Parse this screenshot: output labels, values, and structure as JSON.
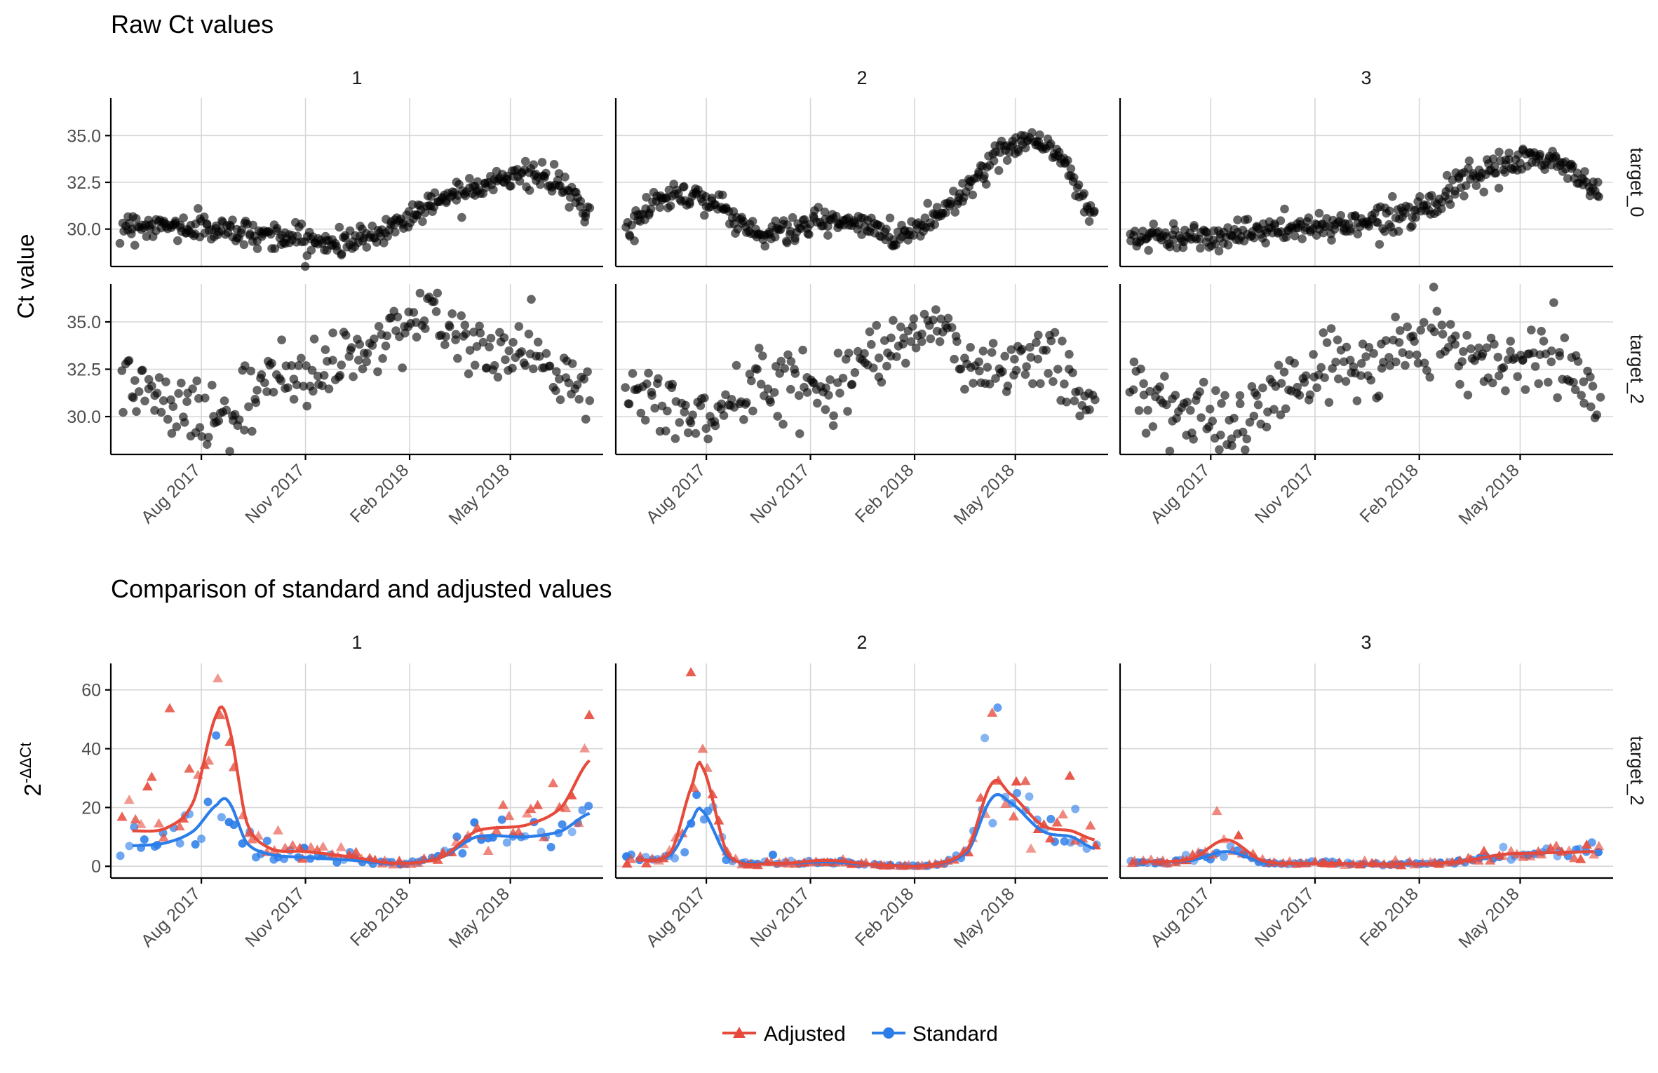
{
  "chart_data": [
    {
      "type": "scatter",
      "title": "Raw Ct values",
      "ylabel": "Ct value",
      "facet_cols": [
        "1",
        "2",
        "3"
      ],
      "facet_rows": [
        "target_0",
        "target_2"
      ],
      "x_ticks": [
        "Aug 2017",
        "Nov 2017",
        "Feb 2018",
        "May 2018"
      ],
      "x_tick_dates": [
        "2017-08-01",
        "2017-11-01",
        "2018-02-01",
        "2018-05-01"
      ],
      "xlim": [
        "2017-05-13",
        "2018-07-22"
      ],
      "ylim": [
        28,
        37
      ],
      "y_ticks": [
        "30.0",
        "32.5",
        "35.0"
      ],
      "y_tick_values": [
        30,
        32.5,
        35
      ],
      "point_color": "#000000",
      "series": [
        {
          "facet": "1",
          "target": "target_0",
          "x": [
            "2017-05-20",
            "2017-06-15",
            "2017-07-15",
            "2017-08-15",
            "2017-09-15",
            "2017-10-15",
            "2017-11-15",
            "2017-12-15",
            "2018-01-15",
            "2018-02-15",
            "2018-03-15",
            "2018-04-15",
            "2018-05-15",
            "2018-06-15",
            "2018-07-05"
          ],
          "y": [
            30.2,
            30.2,
            30.1,
            30.0,
            29.8,
            29.6,
            29.3,
            29.4,
            30.1,
            31.2,
            32.0,
            32.6,
            32.9,
            32.3,
            31.0
          ]
        },
        {
          "facet": "1",
          "target": "target_2",
          "x": [
            "2017-05-20",
            "2017-06-15",
            "2017-07-15",
            "2017-08-15",
            "2017-09-15",
            "2017-10-15",
            "2017-11-15",
            "2017-12-15",
            "2018-01-15",
            "2018-02-15",
            "2018-03-15",
            "2018-04-15",
            "2018-05-15",
            "2018-06-15",
            "2018-07-05"
          ],
          "y": [
            32.2,
            31.3,
            30.3,
            30.0,
            30.7,
            32.2,
            32.6,
            33.1,
            34.5,
            35.4,
            34.0,
            33.5,
            33.2,
            32.3,
            31.0
          ]
        },
        {
          "facet": "2",
          "target": "target_0",
          "x": [
            "2017-05-20",
            "2017-06-15",
            "2017-07-15",
            "2017-08-15",
            "2017-09-15",
            "2017-10-15",
            "2017-11-15",
            "2017-12-15",
            "2018-01-15",
            "2018-02-15",
            "2018-03-15",
            "2018-04-15",
            "2018-05-15",
            "2018-06-15",
            "2018-07-05"
          ],
          "y": [
            29.8,
            31.4,
            31.9,
            31.1,
            29.8,
            30.0,
            30.4,
            30.2,
            29.7,
            30.5,
            32.0,
            33.8,
            34.9,
            33.4,
            31.0
          ]
        },
        {
          "facet": "2",
          "target": "target_2",
          "x": [
            "2017-05-20",
            "2017-06-15",
            "2017-07-15",
            "2017-08-15",
            "2017-09-15",
            "2017-10-15",
            "2017-11-15",
            "2017-12-15",
            "2018-01-15",
            "2018-02-15",
            "2018-03-15",
            "2018-04-15",
            "2018-05-15",
            "2018-06-15",
            "2018-07-05"
          ],
          "y": [
            31.4,
            31.0,
            30.0,
            30.3,
            31.5,
            32.0,
            31.5,
            32.8,
            34.4,
            34.6,
            33.0,
            32.6,
            33.2,
            32.4,
            31.0
          ]
        },
        {
          "facet": "3",
          "target": "target_0",
          "x": [
            "2017-05-20",
            "2017-06-15",
            "2017-07-15",
            "2017-08-15",
            "2017-09-15",
            "2017-10-15",
            "2017-11-15",
            "2017-12-15",
            "2018-01-15",
            "2018-02-15",
            "2018-03-15",
            "2018-04-15",
            "2018-05-15",
            "2018-06-15",
            "2018-07-05"
          ],
          "y": [
            29.6,
            29.6,
            29.6,
            29.7,
            29.9,
            30.0,
            30.2,
            30.4,
            30.8,
            31.5,
            32.5,
            33.3,
            33.8,
            33.2,
            32.0
          ]
        },
        {
          "facet": "3",
          "target": "target_2",
          "x": [
            "2017-05-20",
            "2017-06-15",
            "2017-07-15",
            "2017-08-15",
            "2017-09-15",
            "2017-10-15",
            "2017-11-15",
            "2017-12-15",
            "2018-01-15",
            "2018-02-15",
            "2018-03-15",
            "2018-04-15",
            "2018-05-15",
            "2018-06-15",
            "2018-07-05"
          ],
          "y": [
            31.3,
            30.8,
            30.2,
            29.8,
            30.4,
            32.0,
            32.6,
            32.7,
            33.6,
            34.6,
            33.2,
            32.8,
            33.4,
            32.6,
            31.0
          ]
        }
      ]
    },
    {
      "type": "scatter",
      "title": "Comparison of standard and adjusted values",
      "ylabel": "2",
      "ylabel_superscript": "-ΔΔCt",
      "facet_cols": [
        "1",
        "2",
        "3"
      ],
      "facet_rows": [
        "target_2"
      ],
      "x_ticks": [
        "Aug 2017",
        "Nov 2017",
        "Feb 2018",
        "May 2018"
      ],
      "x_tick_dates": [
        "2017-08-01",
        "2017-11-01",
        "2018-02-01",
        "2018-05-01"
      ],
      "xlim": [
        "2017-05-13",
        "2018-07-22"
      ],
      "ylim": [
        -4,
        69
      ],
      "y_ticks": [
        "0",
        "20",
        "40",
        "60"
      ],
      "y_tick_values": [
        0,
        20,
        40,
        60
      ],
      "legend": {
        "position": "bottom",
        "entries": [
          "Adjusted",
          "Standard"
        ]
      },
      "colors": {
        "Adjusted": "#e64a3b",
        "Standard": "#2b7de9"
      },
      "series": [
        {
          "facet": "1",
          "name": "Adjusted",
          "x": [
            "2017-06-01",
            "2017-07-01",
            "2017-07-25",
            "2017-08-15",
            "2017-08-25",
            "2017-09-10",
            "2017-10-01",
            "2017-11-01",
            "2017-12-15",
            "2018-01-20",
            "2018-03-01",
            "2018-04-01",
            "2018-05-15",
            "2018-06-15",
            "2018-07-10"
          ],
          "y": [
            12,
            13,
            22,
            52,
            48,
            15,
            6,
            5,
            3,
            1,
            3,
            12,
            14,
            20,
            36
          ]
        },
        {
          "facet": "1",
          "name": "Standard",
          "x": [
            "2017-06-01",
            "2017-07-01",
            "2017-07-25",
            "2017-08-15",
            "2017-08-25",
            "2017-09-10",
            "2017-10-01",
            "2017-11-01",
            "2017-12-15",
            "2018-01-20",
            "2018-03-01",
            "2018-04-01",
            "2018-05-15",
            "2018-06-15",
            "2018-07-10"
          ],
          "y": [
            7,
            8,
            12,
            21,
            22,
            8,
            4,
            3,
            2,
            1,
            3,
            10,
            10,
            12,
            18
          ]
        },
        {
          "facet": "2",
          "name": "Adjusted",
          "x": [
            "2017-06-01",
            "2017-07-01",
            "2017-07-20",
            "2017-07-28",
            "2017-08-20",
            "2017-10-01",
            "2017-11-15",
            "2018-01-01",
            "2018-02-15",
            "2018-03-20",
            "2018-04-10",
            "2018-04-25",
            "2018-05-25",
            "2018-06-20",
            "2018-07-10"
          ],
          "y": [
            2,
            5,
            28,
            34,
            4,
            1,
            2,
            0.5,
            0.5,
            6,
            28,
            25,
            14,
            12,
            9
          ]
        },
        {
          "facet": "2",
          "name": "Standard",
          "x": [
            "2017-06-01",
            "2017-07-01",
            "2017-07-20",
            "2017-07-28",
            "2017-08-20",
            "2017-10-01",
            "2017-11-15",
            "2018-01-01",
            "2018-02-15",
            "2018-03-20",
            "2018-04-10",
            "2018-04-25",
            "2018-05-25",
            "2018-06-20",
            "2018-07-10"
          ],
          "y": [
            2,
            4,
            16,
            19,
            3,
            1,
            1.5,
            0.5,
            0.5,
            5,
            23,
            22,
            12,
            10,
            6
          ]
        },
        {
          "facet": "3",
          "name": "Adjusted",
          "x": [
            "2017-06-01",
            "2017-07-15",
            "2017-08-15",
            "2017-09-15",
            "2017-10-15",
            "2017-11-15",
            "2017-12-15",
            "2018-01-15",
            "2018-02-15",
            "2018-03-15",
            "2018-04-15",
            "2018-05-15",
            "2018-06-15",
            "2018-07-05"
          ],
          "y": [
            1.5,
            2.5,
            9,
            2,
            1,
            1,
            0.8,
            0.8,
            1,
            2,
            4,
            4.5,
            4.8,
            5
          ]
        },
        {
          "facet": "3",
          "name": "Standard",
          "x": [
            "2017-06-01",
            "2017-07-15",
            "2017-08-15",
            "2017-09-15",
            "2017-10-15",
            "2017-11-15",
            "2017-12-15",
            "2018-01-15",
            "2018-02-15",
            "2018-03-15",
            "2018-04-15",
            "2018-05-15",
            "2018-06-15",
            "2018-07-05"
          ],
          "y": [
            1.5,
            2,
            5,
            1.5,
            1,
            1,
            0.8,
            0.8,
            1,
            2,
            4,
            4.5,
            4.8,
            5
          ]
        }
      ]
    }
  ]
}
